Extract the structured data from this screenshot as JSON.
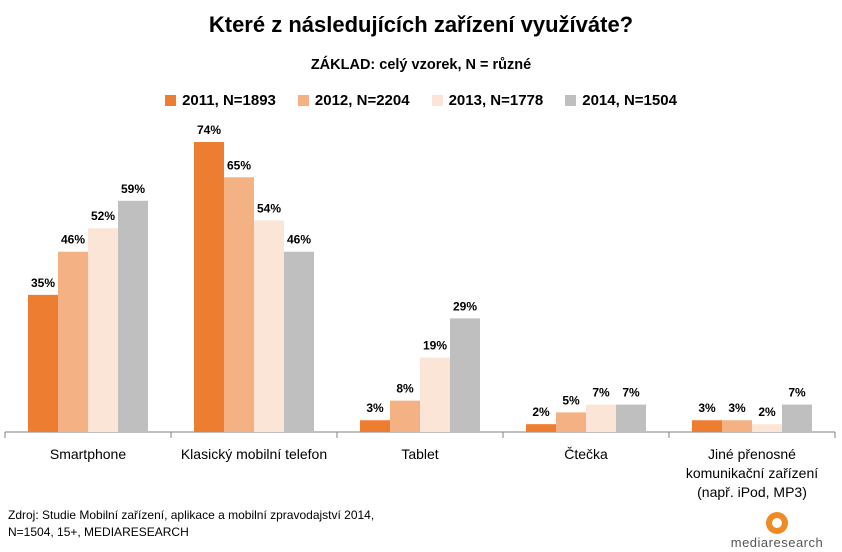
{
  "title": "Které z následujících zařízení využíváte?",
  "subtitle": "ZÁKLAD: celý vzorek, N = různé",
  "chart_data": {
    "type": "bar",
    "categories": [
      [
        "Smartphone"
      ],
      [
        "Klasický mobilní telefon"
      ],
      [
        "Tablet"
      ],
      [
        "Čtečka"
      ],
      [
        "Jiné přenosné",
        "komunikační zařízení",
        "(např. iPod, MP3)"
      ]
    ],
    "series": [
      {
        "name": "2011, N=1893",
        "color": "#ED7D31",
        "values": [
          35,
          74,
          3,
          2,
          3
        ]
      },
      {
        "name": "2012, N=2204",
        "color": "#F4B183",
        "values": [
          46,
          65,
          8,
          5,
          3
        ]
      },
      {
        "name": "2013, N=1778",
        "color": "#FBE5D6",
        "values": [
          52,
          54,
          19,
          7,
          2
        ]
      },
      {
        "name": "2014, N=1504",
        "color": "#BFBFBF",
        "values": [
          59,
          46,
          29,
          7,
          7
        ]
      }
    ],
    "value_suffix": "%",
    "ylim": [
      0,
      80
    ],
    "legend_position": "top",
    "grid": false
  },
  "source": {
    "line1": "Zdroj:  Studie Mobilní zařízení, aplikace a mobilní zpravodajství 2014,",
    "line2": "N=1504, 15+, MEDIARESEARCH"
  },
  "logo": {
    "text": "mediaresearch"
  }
}
